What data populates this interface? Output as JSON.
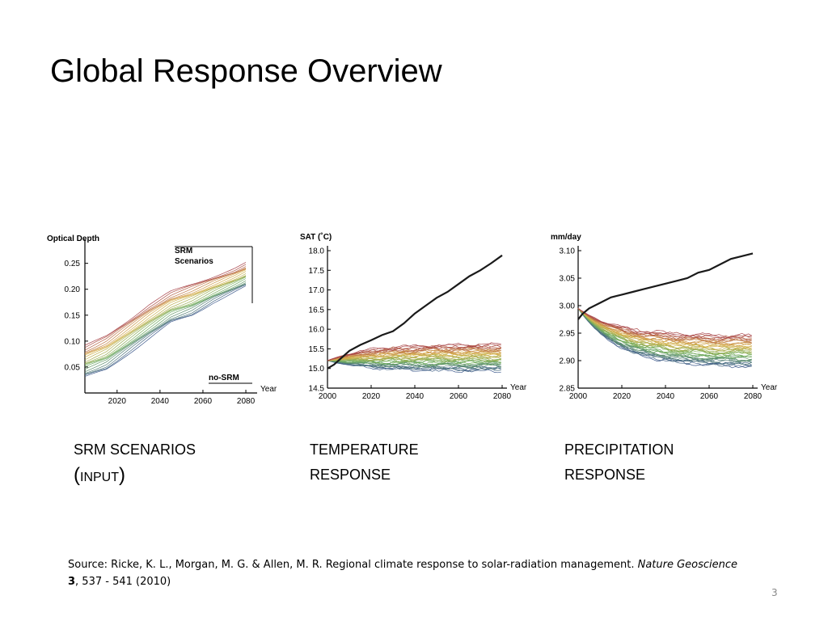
{
  "slide": {
    "title": "Global Response Overview",
    "page_number": "3",
    "captions": [
      {
        "line1": "SRM SCENARIOS",
        "line2_open": "(",
        "line2_text": "INPUT",
        "line2_close": ")"
      },
      {
        "line1": "TEMPERATURE",
        "line2": "RESPONSE"
      },
      {
        "line1": "PRECIPITATION",
        "line2": "RESPONSE"
      }
    ],
    "source": {
      "prefix": "Source: Ricke, K. L., Morgan, M. G. & Allen, M. R. Regional climate response to solar-radiation management.",
      "journal": "Nature Geoscience",
      "volume": "3",
      "rest": ", 537 - 541 (2010)"
    }
  },
  "colors": {
    "ensemble_top": "#a8434a",
    "ensemble_mid1": "#d9b24a",
    "ensemble_mid2": "#6fae5e",
    "ensemble_bottom": "#3e5a8c",
    "no_srm": "#1a1a1a"
  },
  "chart_data": [
    {
      "type": "line",
      "ylabel": "Optical Depth",
      "xlabel": "Year",
      "x_ticks": [
        "2020",
        "2040",
        "2060",
        "2080"
      ],
      "y_ticks": [
        "0.05",
        "0.10",
        "0.15",
        "0.20",
        "0.25"
      ],
      "xlim": [
        2005,
        2083
      ],
      "ylim": [
        0,
        0.29
      ],
      "annotations": [
        "SRM",
        "Scenarios",
        "no-SRM"
      ],
      "ensemble": {
        "count": 20,
        "description": "SRM optical depth scenarios"
      },
      "x": [
        2005,
        2015,
        2025,
        2035,
        2045,
        2055,
        2065,
        2075,
        2080
      ],
      "band_low": [
        0.03,
        0.045,
        0.075,
        0.105,
        0.135,
        0.15,
        0.175,
        0.195,
        0.205
      ],
      "band_high": [
        0.09,
        0.11,
        0.14,
        0.17,
        0.195,
        0.21,
        0.225,
        0.24,
        0.25
      ]
    },
    {
      "type": "line",
      "ylabel": "SAT (˚C)",
      "xlabel": "Year",
      "x_ticks": [
        "2000",
        "2020",
        "2040",
        "2060",
        "2080"
      ],
      "y_ticks": [
        "14.5",
        "15.0",
        "15.5",
        "16.0",
        "16.5",
        "17.0",
        "17.5",
        "18.0"
      ],
      "xlim": [
        2000,
        2080
      ],
      "ylim": [
        14.5,
        18.0
      ],
      "series": [
        {
          "values_x": [
            2000,
            2003,
            2006,
            2010,
            2015,
            2020,
            2025,
            2030,
            2035,
            2040,
            2045,
            2050,
            2055,
            2060,
            2065,
            2070,
            2075,
            2080
          ],
          "values_y": [
            15.0,
            15.1,
            15.25,
            15.45,
            15.6,
            15.72,
            15.85,
            15.95,
            16.15,
            16.4,
            16.6,
            16.8,
            16.95,
            17.15,
            17.35,
            17.5,
            17.68,
            17.88
          ]
        }
      ],
      "ensemble": {
        "count": 40,
        "start": 15.2,
        "end_low": 14.95,
        "end_high": 15.6
      }
    },
    {
      "type": "line",
      "ylabel": "mm/day",
      "xlabel": "Year",
      "x_ticks": [
        "2000",
        "2020",
        "2040",
        "2060",
        "2080"
      ],
      "y_ticks": [
        "2.85",
        "2.90",
        "2.95",
        "3.00",
        "3.05",
        "3.10"
      ],
      "xlim": [
        2000,
        2080
      ],
      "ylim": [
        2.85,
        3.1
      ],
      "series": [
        {
          "values_x": [
            2000,
            2002,
            2005,
            2010,
            2015,
            2020,
            2025,
            2030,
            2035,
            2040,
            2045,
            2050,
            2055,
            2060,
            2065,
            2070,
            2075,
            2080
          ],
          "values_y": [
            2.975,
            2.985,
            2.995,
            3.005,
            3.015,
            3.02,
            3.025,
            3.03,
            3.035,
            3.04,
            3.045,
            3.05,
            3.06,
            3.065,
            3.075,
            3.085,
            3.09,
            3.095
          ]
        }
      ],
      "ensemble": {
        "count": 40,
        "start": 2.995,
        "end_low": 2.89,
        "end_high": 2.945
      }
    }
  ]
}
